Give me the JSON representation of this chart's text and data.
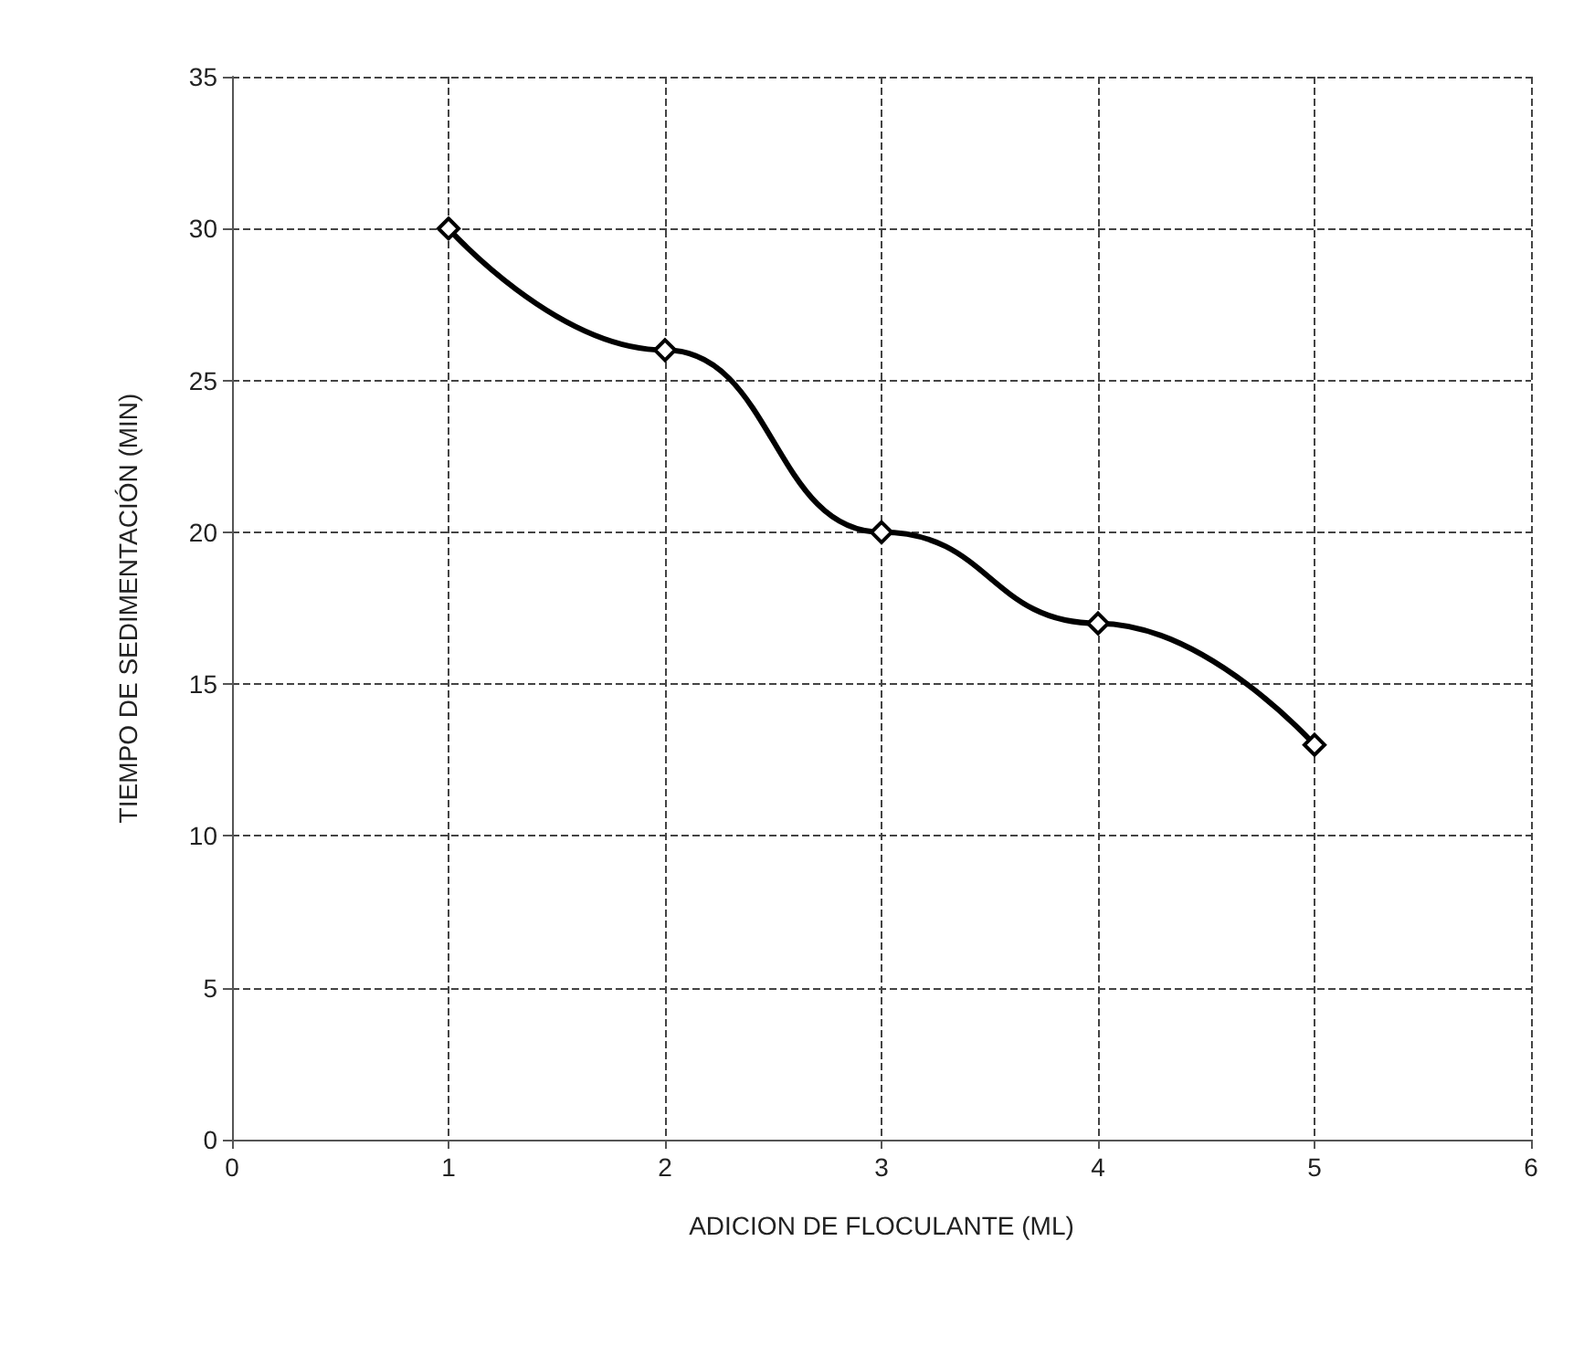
{
  "chart_data": {
    "type": "line",
    "xlabel": "ADICION DE FLOCULANTE (ML)",
    "ylabel": "TIEMPO DE SEDIMENTACIÓN (MIN)",
    "x": [
      1,
      2,
      3,
      4,
      5
    ],
    "series": [
      {
        "color": "#000000",
        "values": [
          30,
          26,
          20,
          17,
          13
        ]
      }
    ],
    "xlim": [
      0,
      6
    ],
    "xticks": [
      0,
      1,
      2,
      3,
      4,
      5,
      6
    ],
    "ylim": [
      0,
      35
    ],
    "yticks": [
      0,
      5,
      10,
      15,
      20,
      25,
      30,
      35
    ],
    "grid": true,
    "marker": "diamond",
    "line_style": "solid"
  }
}
